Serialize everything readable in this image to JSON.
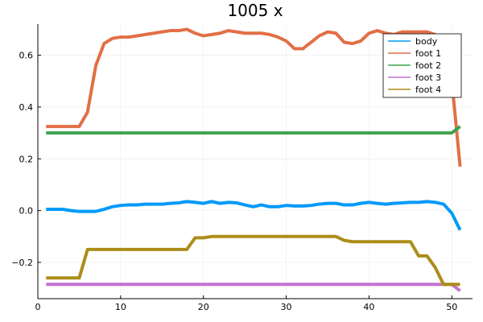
{
  "chart_data": {
    "type": "line",
    "title": "1005 x",
    "xlabel": "",
    "ylabel": "",
    "xlim": [
      0,
      52.5
    ],
    "ylim": [
      -0.34,
      0.72
    ],
    "xticks": [
      0,
      10,
      20,
      30,
      40,
      50
    ],
    "yticks": [
      -0.2,
      0.0,
      0.2,
      0.4,
      0.6
    ],
    "xtick_labels": [
      "0",
      "10",
      "20",
      "30",
      "40",
      "50"
    ],
    "ytick_labels": [
      "−0.2",
      "0.0",
      "0.2",
      "0.4",
      "0.6"
    ],
    "grid": true,
    "legend_position": "top-right",
    "x": [
      1,
      2,
      3,
      4,
      5,
      6,
      7,
      8,
      9,
      10,
      11,
      12,
      13,
      14,
      15,
      16,
      17,
      18,
      19,
      20,
      21,
      22,
      23,
      24,
      25,
      26,
      27,
      28,
      29,
      30,
      31,
      32,
      33,
      34,
      35,
      36,
      37,
      38,
      39,
      40,
      41,
      42,
      43,
      44,
      45,
      46,
      47,
      48,
      49,
      50,
      51
    ],
    "series": [
      {
        "name": "body",
        "color": "#009af9",
        "values": [
          0.005,
          0.005,
          0.005,
          0.0,
          -0.003,
          -0.003,
          -0.003,
          0.005,
          0.015,
          0.02,
          0.022,
          0.022,
          0.025,
          0.025,
          0.025,
          0.028,
          0.03,
          0.035,
          0.032,
          0.028,
          0.035,
          0.028,
          0.032,
          0.03,
          0.022,
          0.015,
          0.022,
          0.015,
          0.015,
          0.02,
          0.018,
          0.018,
          0.02,
          0.025,
          0.028,
          0.028,
          0.022,
          0.022,
          0.028,
          0.032,
          0.028,
          0.025,
          0.028,
          0.03,
          0.032,
          0.032,
          0.035,
          0.032,
          0.025,
          -0.01,
          -0.075
        ]
      },
      {
        "name": "foot 1",
        "color": "#e26f46",
        "values": [
          0.325,
          0.325,
          0.325,
          0.325,
          0.325,
          0.38,
          0.56,
          0.645,
          0.665,
          0.67,
          0.67,
          0.675,
          0.68,
          0.685,
          0.69,
          0.695,
          0.695,
          0.7,
          0.685,
          0.675,
          0.68,
          0.685,
          0.695,
          0.69,
          0.685,
          0.685,
          0.685,
          0.68,
          0.67,
          0.655,
          0.625,
          0.625,
          0.65,
          0.675,
          0.69,
          0.685,
          0.65,
          0.645,
          0.655,
          0.685,
          0.695,
          0.685,
          0.68,
          0.69,
          0.69,
          0.69,
          0.69,
          0.68,
          0.52,
          0.5,
          0.17
        ]
      },
      {
        "name": "foot 2",
        "color": "#3da44d",
        "values": [
          0.3,
          0.3,
          0.3,
          0.3,
          0.3,
          0.3,
          0.3,
          0.3,
          0.3,
          0.3,
          0.3,
          0.3,
          0.3,
          0.3,
          0.3,
          0.3,
          0.3,
          0.3,
          0.3,
          0.3,
          0.3,
          0.3,
          0.3,
          0.3,
          0.3,
          0.3,
          0.3,
          0.3,
          0.3,
          0.3,
          0.3,
          0.3,
          0.3,
          0.3,
          0.3,
          0.3,
          0.3,
          0.3,
          0.3,
          0.3,
          0.3,
          0.3,
          0.3,
          0.3,
          0.3,
          0.3,
          0.3,
          0.3,
          0.3,
          0.3,
          0.325
        ]
      },
      {
        "name": "foot 3",
        "color": "#c271d2",
        "values": [
          -0.285,
          -0.285,
          -0.285,
          -0.285,
          -0.285,
          -0.285,
          -0.285,
          -0.285,
          -0.285,
          -0.285,
          -0.285,
          -0.285,
          -0.285,
          -0.285,
          -0.285,
          -0.285,
          -0.285,
          -0.285,
          -0.285,
          -0.285,
          -0.285,
          -0.285,
          -0.285,
          -0.285,
          -0.285,
          -0.285,
          -0.285,
          -0.285,
          -0.285,
          -0.285,
          -0.285,
          -0.285,
          -0.285,
          -0.285,
          -0.285,
          -0.285,
          -0.285,
          -0.285,
          -0.285,
          -0.285,
          -0.285,
          -0.285,
          -0.285,
          -0.285,
          -0.285,
          -0.285,
          -0.285,
          -0.285,
          -0.285,
          -0.285,
          -0.31
        ]
      },
      {
        "name": "foot 4",
        "color": "#ac8d18",
        "values": [
          -0.26,
          -0.26,
          -0.26,
          -0.26,
          -0.26,
          -0.15,
          -0.15,
          -0.15,
          -0.15,
          -0.15,
          -0.15,
          -0.15,
          -0.15,
          -0.15,
          -0.15,
          -0.15,
          -0.15,
          -0.15,
          -0.105,
          -0.105,
          -0.1,
          -0.1,
          -0.1,
          -0.1,
          -0.1,
          -0.1,
          -0.1,
          -0.1,
          -0.1,
          -0.1,
          -0.1,
          -0.1,
          -0.1,
          -0.1,
          -0.1,
          -0.1,
          -0.115,
          -0.12,
          -0.12,
          -0.12,
          -0.12,
          -0.12,
          -0.12,
          -0.12,
          -0.12,
          -0.175,
          -0.175,
          -0.22,
          -0.285,
          -0.285,
          -0.285
        ]
      }
    ]
  }
}
